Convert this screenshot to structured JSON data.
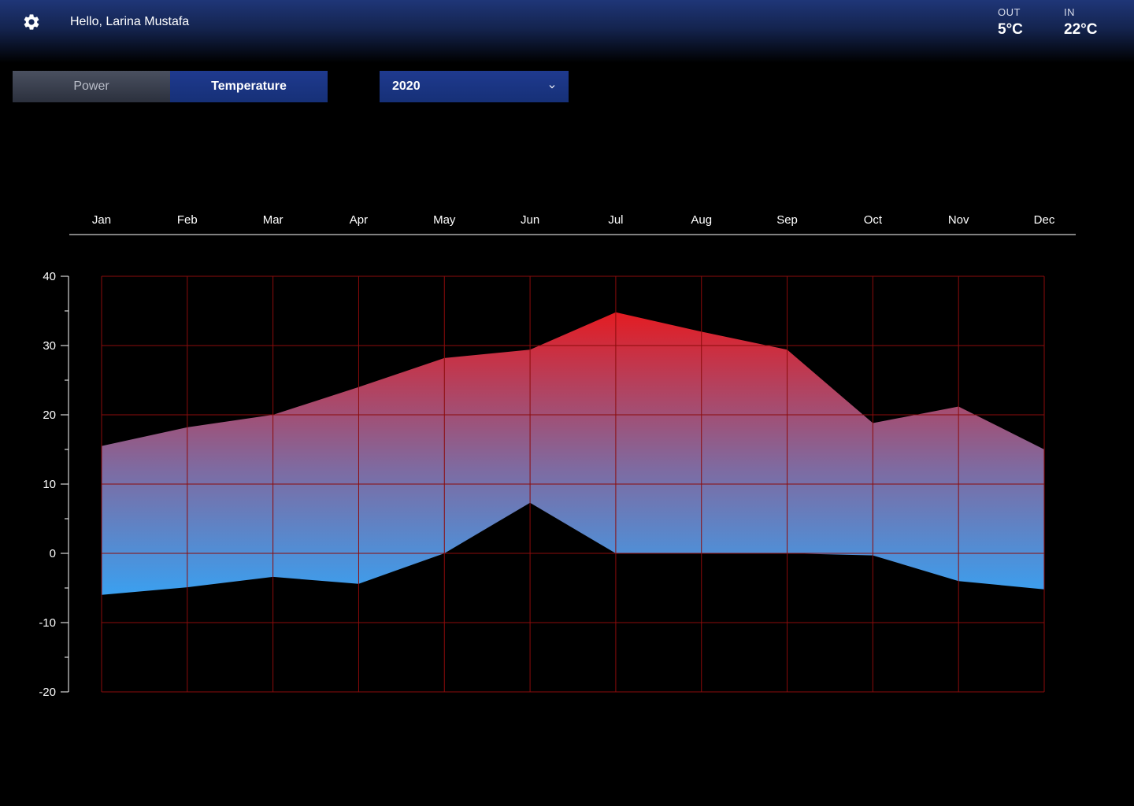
{
  "header": {
    "greeting": "Hello, Larina Mustafa",
    "settings_icon": "gear-icon",
    "outdoor": {
      "label": "OUT",
      "value": "5°C"
    },
    "indoor": {
      "label": "IN",
      "value": "22°C"
    }
  },
  "tabs": [
    {
      "label": "Power",
      "active": false
    },
    {
      "label": "Temperature",
      "active": true
    }
  ],
  "year_select": {
    "value": "2020",
    "icon": "chevron-down-icon"
  },
  "colors": {
    "accent": "#1f3a8f",
    "grid": "#8b0b0b",
    "high": "#e01e26",
    "low": "#3aa0f0"
  },
  "chart_data": {
    "type": "area",
    "categories": [
      "Jan",
      "Feb",
      "Mar",
      "Apr",
      "May",
      "Jun",
      "Jul",
      "Aug",
      "Sep",
      "Oct",
      "Nov",
      "Dec"
    ],
    "series": [
      {
        "values": [
          15.5,
          18.2,
          20,
          24,
          28.2,
          29.4,
          34.8,
          32,
          29.4,
          18.8,
          21.2,
          15
        ]
      },
      {
        "values": [
          -6,
          -4.9,
          -3.4,
          -4.4,
          0,
          7.3,
          0,
          0,
          0,
          -0.3,
          -4,
          -5.2
        ]
      }
    ],
    "yticks": [
      "40",
      "30",
      "20",
      "10",
      "0",
      "-10",
      "-20"
    ],
    "ylim": [
      -20,
      40
    ],
    "grid": true,
    "xlabel": "",
    "ylabel": ""
  }
}
